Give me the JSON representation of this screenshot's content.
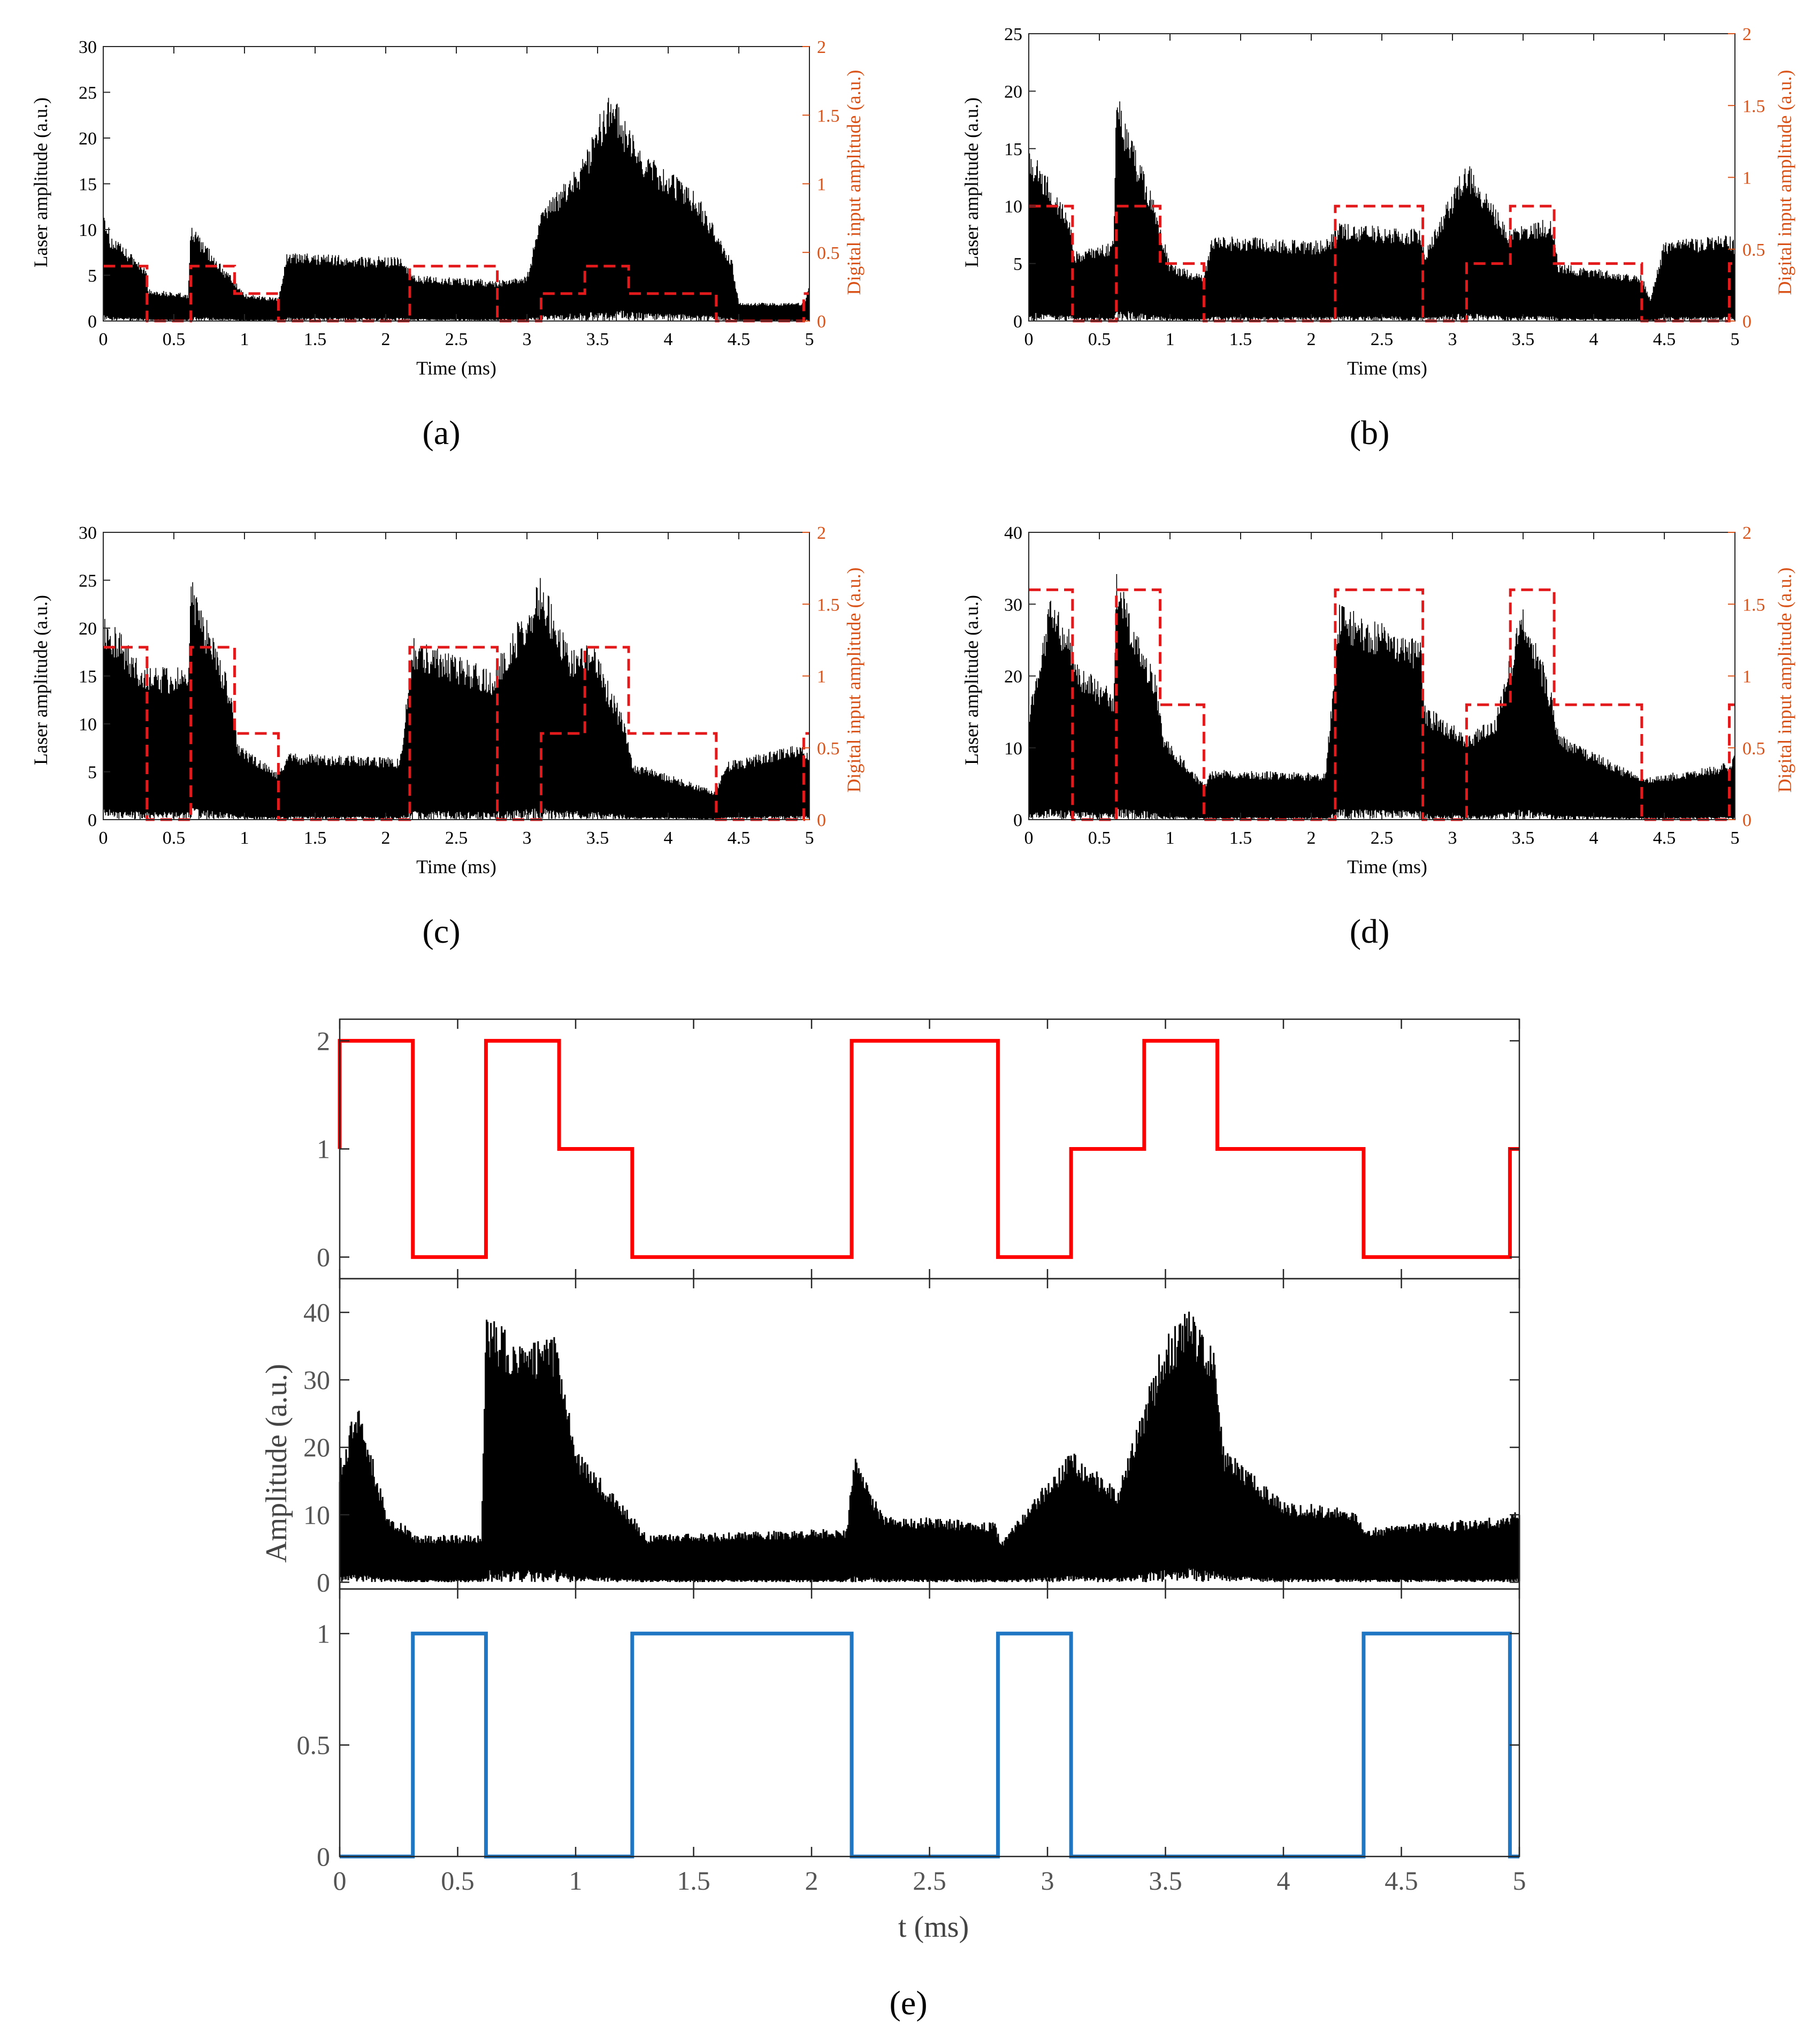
{
  "chart_data": [
    {
      "panel": "a",
      "type": "line",
      "label": "(a)",
      "xlabel": "Time (ms)",
      "ylabel": "Laser amplitude (a.u.)",
      "y2label": "Digital input amplitude (a.u.)",
      "xlim": [
        0,
        5
      ],
      "ylim": [
        0,
        30
      ],
      "y2lim": [
        0,
        2
      ],
      "xticks": [
        "0",
        "0.5",
        "1",
        "1.5",
        "2",
        "2.5",
        "3",
        "3.5",
        "4",
        "4.5",
        "5"
      ],
      "yticks": [
        "0",
        "5",
        "10",
        "15",
        "20",
        "25",
        "30"
      ],
      "y2ticks": [
        "0",
        "0.5",
        "1",
        "1.5",
        "2"
      ],
      "colors": {
        "laser": "#000000",
        "digital": "#e31a1c",
        "right_axis": "#d95319"
      },
      "digital_segments": [
        [
          0,
          0.31,
          0.4
        ],
        [
          0.31,
          0.62,
          0
        ],
        [
          0.62,
          0.93,
          0.4
        ],
        [
          0.93,
          1.24,
          0.2
        ],
        [
          1.24,
          2.17,
          0
        ],
        [
          2.17,
          2.79,
          0.4
        ],
        [
          2.79,
          3.1,
          0
        ],
        [
          3.1,
          3.41,
          0.2
        ],
        [
          3.41,
          3.72,
          0.4
        ],
        [
          3.72,
          4.34,
          0.2
        ],
        [
          4.34,
          4.96,
          0
        ],
        [
          4.96,
          5,
          0.2
        ]
      ],
      "laser_envelope": [
        [
          0,
          13
        ],
        [
          0.05,
          9.5
        ],
        [
          0.3,
          6
        ],
        [
          0.32,
          3.5
        ],
        [
          0.6,
          3
        ],
        [
          0.62,
          10.5
        ],
        [
          0.9,
          5
        ],
        [
          1.0,
          3
        ],
        [
          1.24,
          2.5
        ],
        [
          1.3,
          7.5
        ],
        [
          2.1,
          7
        ],
        [
          2.2,
          5
        ],
        [
          2.8,
          4.5
        ],
        [
          3.0,
          5
        ],
        [
          3.1,
          12
        ],
        [
          3.4,
          18
        ],
        [
          3.58,
          25.5
        ],
        [
          3.8,
          19
        ],
        [
          4.2,
          14
        ],
        [
          4.45,
          7
        ],
        [
          4.5,
          2
        ],
        [
          4.96,
          2
        ],
        [
          5,
          4
        ]
      ]
    },
    {
      "panel": "b",
      "type": "line",
      "label": "(b)",
      "xlabel": "Time (ms)",
      "ylabel": "Laser amplitude (a.u.)",
      "y2label": "Digital input amplitude (a.u.)",
      "xlim": [
        0,
        5
      ],
      "ylim": [
        0,
        25
      ],
      "y2lim": [
        0,
        2
      ],
      "xticks": [
        "0",
        "0.5",
        "1",
        "1.5",
        "2",
        "2.5",
        "3",
        "3.5",
        "4",
        "4.5",
        "5"
      ],
      "yticks": [
        "0",
        "5",
        "10",
        "15",
        "20",
        "25"
      ],
      "y2ticks": [
        "0",
        "0.5",
        "1",
        "1.5",
        "2"
      ],
      "colors": {
        "laser": "#000000",
        "digital": "#e31a1c",
        "right_axis": "#d95319"
      },
      "digital_segments": [
        [
          0,
          0.31,
          0.8
        ],
        [
          0.31,
          0.62,
          0
        ],
        [
          0.62,
          0.93,
          0.8
        ],
        [
          0.93,
          1.24,
          0.4
        ],
        [
          1.24,
          2.17,
          0
        ],
        [
          2.17,
          2.79,
          0.8
        ],
        [
          2.79,
          3.1,
          0
        ],
        [
          3.1,
          3.41,
          0.4
        ],
        [
          3.41,
          3.72,
          0.8
        ],
        [
          3.72,
          4.34,
          0.4
        ],
        [
          4.34,
          4.96,
          0
        ],
        [
          4.96,
          5,
          0.4
        ]
      ],
      "laser_envelope": [
        [
          0,
          15.5
        ],
        [
          0.3,
          9
        ],
        [
          0.32,
          6
        ],
        [
          0.6,
          7
        ],
        [
          0.62,
          20
        ],
        [
          0.9,
          10
        ],
        [
          1.0,
          5
        ],
        [
          1.24,
          4
        ],
        [
          1.3,
          7.5
        ],
        [
          2.1,
          7
        ],
        [
          2.2,
          8.5
        ],
        [
          2.78,
          8
        ],
        [
          2.8,
          6
        ],
        [
          3.1,
          14
        ],
        [
          3.4,
          8
        ],
        [
          3.7,
          9
        ],
        [
          3.75,
          5
        ],
        [
          4.34,
          4
        ],
        [
          4.4,
          2
        ],
        [
          4.5,
          7
        ],
        [
          4.96,
          7.5
        ],
        [
          5,
          7
        ]
      ]
    },
    {
      "panel": "c",
      "type": "line",
      "label": "(c)",
      "xlabel": "Time (ms)",
      "ylabel": "Laser amplitude (a.u.)",
      "y2label": "Digital input amplitude (a.u.)",
      "xlim": [
        0,
        5
      ],
      "ylim": [
        0,
        30
      ],
      "y2lim": [
        0,
        2
      ],
      "xticks": [
        "0",
        "0.5",
        "1",
        "1.5",
        "2",
        "2.5",
        "3",
        "3.5",
        "4",
        "4.5",
        "5"
      ],
      "yticks": [
        "0",
        "5",
        "10",
        "15",
        "20",
        "25",
        "30"
      ],
      "y2ticks": [
        "0",
        "0.5",
        "1",
        "1.5",
        "2"
      ],
      "colors": {
        "laser": "#000000",
        "digital": "#e31a1c",
        "right_axis": "#d95319"
      },
      "digital_segments": [
        [
          0,
          0.31,
          1.2
        ],
        [
          0.31,
          0.62,
          0
        ],
        [
          0.62,
          0.93,
          1.2
        ],
        [
          0.93,
          1.24,
          0.6
        ],
        [
          1.24,
          2.17,
          0
        ],
        [
          2.17,
          2.79,
          1.2
        ],
        [
          2.79,
          3.1,
          0
        ],
        [
          3.1,
          3.41,
          0.6
        ],
        [
          3.41,
          3.72,
          1.2
        ],
        [
          3.72,
          4.34,
          0.6
        ],
        [
          4.34,
          4.96,
          0
        ],
        [
          4.96,
          5,
          0.6
        ]
      ],
      "laser_envelope": [
        [
          0,
          22
        ],
        [
          0.3,
          16
        ],
        [
          0.32,
          16
        ],
        [
          0.6,
          16
        ],
        [
          0.62,
          25.5
        ],
        [
          0.9,
          14
        ],
        [
          0.95,
          8
        ],
        [
          1.24,
          5
        ],
        [
          1.3,
          7
        ],
        [
          2.1,
          6.5
        ],
        [
          2.2,
          19
        ],
        [
          2.78,
          15.5
        ],
        [
          2.8,
          17
        ],
        [
          3.1,
          25.5
        ],
        [
          3.3,
          18
        ],
        [
          3.45,
          19
        ],
        [
          3.7,
          10
        ],
        [
          3.75,
          6
        ],
        [
          4.34,
          3
        ],
        [
          4.4,
          6
        ],
        [
          4.96,
          8
        ],
        [
          5,
          7
        ]
      ]
    },
    {
      "panel": "d",
      "type": "line",
      "label": "(d)",
      "xlabel": "Time (ms)",
      "ylabel": "Laser amplitude (a.u.)",
      "y2label": "Digital input amplitude (a.u.)",
      "xlim": [
        0,
        5
      ],
      "ylim": [
        0,
        40
      ],
      "y2lim": [
        0,
        2
      ],
      "xticks": [
        "0",
        "0.5",
        "1",
        "1.5",
        "2",
        "2.5",
        "3",
        "3.5",
        "4",
        "4.5",
        "5"
      ],
      "yticks": [
        "0",
        "10",
        "20",
        "30",
        "40"
      ],
      "y2ticks": [
        "0",
        "0.5",
        "1",
        "1.5",
        "2"
      ],
      "colors": {
        "laser": "#000000",
        "digital": "#e31a1c",
        "right_axis": "#d95319"
      },
      "digital_segments": [
        [
          0,
          0.31,
          1.6
        ],
        [
          0.31,
          0.62,
          0
        ],
        [
          0.62,
          0.93,
          1.6
        ],
        [
          0.93,
          1.24,
          0.8
        ],
        [
          1.24,
          2.17,
          0
        ],
        [
          2.17,
          2.79,
          1.6
        ],
        [
          2.79,
          3.1,
          0
        ],
        [
          3.1,
          3.41,
          0.8
        ],
        [
          3.41,
          3.72,
          1.6
        ],
        [
          3.72,
          4.34,
          0.8
        ],
        [
          4.34,
          4.96,
          0
        ],
        [
          4.96,
          5,
          0.8
        ]
      ],
      "laser_envelope": [
        [
          0,
          15
        ],
        [
          0.15,
          31
        ],
        [
          0.3,
          26
        ],
        [
          0.32,
          22
        ],
        [
          0.6,
          18
        ],
        [
          0.62,
          34.5
        ],
        [
          0.9,
          20
        ],
        [
          0.95,
          12
        ],
        [
          1.24,
          5
        ],
        [
          1.3,
          7
        ],
        [
          2.1,
          6.5
        ],
        [
          2.2,
          30
        ],
        [
          2.78,
          25
        ],
        [
          2.8,
          16
        ],
        [
          3.1,
          12
        ],
        [
          3.3,
          14
        ],
        [
          3.5,
          31
        ],
        [
          3.7,
          18
        ],
        [
          3.75,
          12
        ],
        [
          4.34,
          6
        ],
        [
          4.4,
          6
        ],
        [
          4.96,
          8
        ],
        [
          5,
          10
        ]
      ]
    },
    {
      "panel": "e",
      "type": "line",
      "label": "(e)",
      "xlabel": "t (ms)",
      "ylabel": "Amplitude (a.u.)",
      "xlim": [
        0,
        5
      ],
      "xticks": [
        "0",
        "0.5",
        "1",
        "1.5",
        "2",
        "2.5",
        "3",
        "3.5",
        "4",
        "4.5",
        "5"
      ],
      "subplots": [
        {
          "name": "input",
          "ylim": [
            -0.2,
            2.2
          ],
          "yticks": [
            "0",
            "1",
            "2"
          ],
          "color": "#ff0000",
          "segments": [
            [
              0,
              0,
              1
            ],
            [
              0,
              0.31,
              2
            ],
            [
              0.31,
              0.62,
              0
            ],
            [
              0.62,
              0.93,
              2
            ],
            [
              0.93,
              1.24,
              1
            ],
            [
              1.24,
              2.17,
              0
            ],
            [
              2.17,
              2.79,
              2
            ],
            [
              2.79,
              3.1,
              0
            ],
            [
              3.1,
              3.41,
              1
            ],
            [
              3.41,
              3.72,
              2
            ],
            [
              3.72,
              4.34,
              1
            ],
            [
              4.34,
              4.96,
              0
            ],
            [
              4.96,
              5,
              1
            ]
          ]
        },
        {
          "name": "laser",
          "ylim": [
            -1,
            45
          ],
          "yticks": [
            "0",
            "10",
            "20",
            "30",
            "40"
          ],
          "color": "#000000",
          "envelope": [
            [
              0,
              18
            ],
            [
              0.08,
              27.5
            ],
            [
              0.2,
              10
            ],
            [
              0.3,
              8
            ],
            [
              0.32,
              7
            ],
            [
              0.6,
              7
            ],
            [
              0.62,
              40
            ],
            [
              0.75,
              36
            ],
            [
              0.92,
              37
            ],
            [
              1.0,
              20
            ],
            [
              1.24,
              10
            ],
            [
              1.3,
              7
            ],
            [
              2.15,
              8
            ],
            [
              2.18,
              19.5
            ],
            [
              2.3,
              10
            ],
            [
              2.78,
              9
            ],
            [
              2.8,
              6
            ],
            [
              3.1,
              19.5
            ],
            [
              3.3,
              14
            ],
            [
              3.5,
              37
            ],
            [
              3.6,
              41
            ],
            [
              3.7,
              36
            ],
            [
              3.75,
              20
            ],
            [
              4.0,
              12
            ],
            [
              4.3,
              11
            ],
            [
              4.34,
              8
            ],
            [
              4.96,
              10
            ],
            [
              5,
              11
            ]
          ]
        },
        {
          "name": "target",
          "ylim": [
            0,
            1.2
          ],
          "yticks": [
            "0",
            "0.5",
            "1"
          ],
          "color": "#1f77c4",
          "segments": [
            [
              0,
              0.31,
              0
            ],
            [
              0.31,
              0.62,
              1
            ],
            [
              0.62,
              1.24,
              0
            ],
            [
              1.24,
              2.17,
              1
            ],
            [
              2.17,
              2.79,
              0
            ],
            [
              2.79,
              3.1,
              1
            ],
            [
              3.1,
              4.34,
              0
            ],
            [
              4.34,
              4.96,
              1
            ],
            [
              4.96,
              5,
              0
            ]
          ]
        }
      ]
    }
  ]
}
